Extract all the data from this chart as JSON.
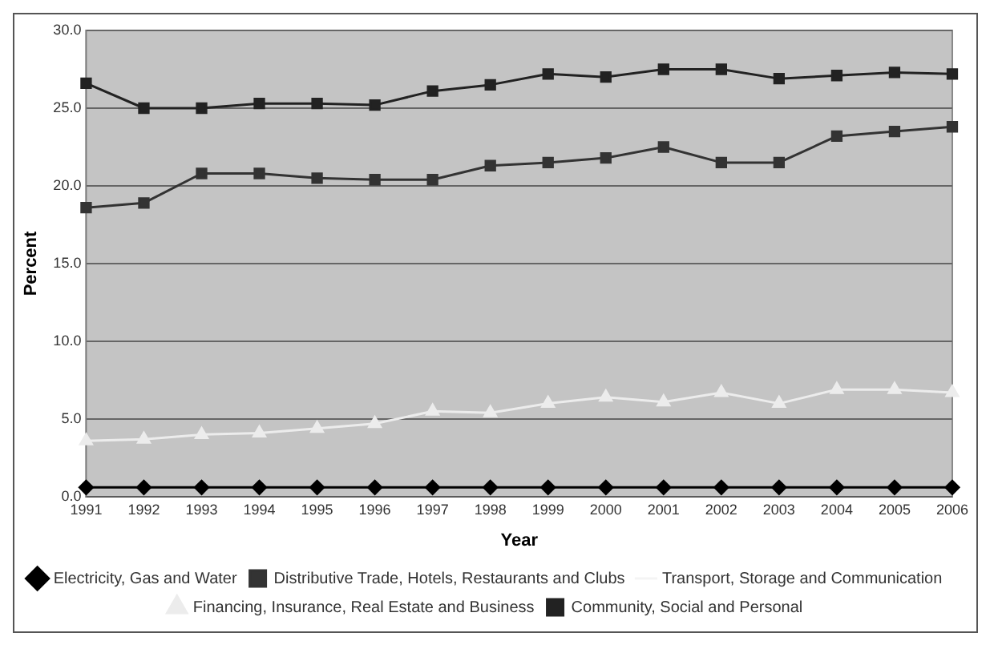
{
  "chart_data": {
    "type": "line",
    "xlabel": "Year",
    "ylabel": "Percent",
    "categories": [
      "1991",
      "1992",
      "1993",
      "1994",
      "1995",
      "1996",
      "1997",
      "1998",
      "1999",
      "2000",
      "2001",
      "2002",
      "2003",
      "2004",
      "2005",
      "2006"
    ],
    "series": [
      {
        "name": "Electricity, Gas and Water",
        "color": "#000000",
        "marker": "diamond",
        "values": [
          0.6,
          0.6,
          0.6,
          0.6,
          0.6,
          0.6,
          0.6,
          0.6,
          0.6,
          0.6,
          0.6,
          0.6,
          0.6,
          0.6,
          0.6,
          0.6
        ]
      },
      {
        "name": "Distributive Trade, Hotels, Restaurants and Clubs",
        "color": "#333333",
        "marker": "square",
        "values": [
          18.6,
          18.9,
          20.8,
          20.8,
          20.5,
          20.4,
          20.4,
          21.3,
          21.5,
          21.8,
          22.5,
          21.5,
          21.5,
          23.2,
          23.5,
          23.8
        ]
      },
      {
        "name": "Transport, Storage and Communication",
        "color": "#f4f4f4",
        "marker": "none",
        "values": [
          null,
          null,
          null,
          null,
          null,
          null,
          null,
          null,
          null,
          null,
          null,
          null,
          null,
          null,
          null,
          null
        ]
      },
      {
        "name": "Financing, Insurance, Real Estate and Business",
        "color": "#ececec",
        "marker": "triangle",
        "values": [
          3.6,
          3.7,
          4.0,
          4.1,
          4.4,
          4.7,
          5.5,
          5.4,
          6.0,
          6.4,
          6.1,
          6.7,
          6.0,
          6.9,
          6.9,
          6.7
        ]
      },
      {
        "name": "Community, Social and Personal",
        "color": "#222222",
        "marker": "square",
        "values": [
          26.6,
          25.0,
          25.0,
          25.3,
          25.3,
          25.2,
          26.1,
          26.5,
          27.2,
          27.0,
          27.5,
          27.5,
          26.9,
          27.1,
          27.3,
          27.2
        ]
      }
    ],
    "ylim": [
      0,
      30
    ],
    "yticks": [
      {
        "value": 0,
        "label": "0.0"
      },
      {
        "value": 5,
        "label": "5.0"
      },
      {
        "value": 10,
        "label": "10.0"
      },
      {
        "value": 15,
        "label": "15.0"
      },
      {
        "value": 20,
        "label": "20.0"
      },
      {
        "value": 25,
        "label": "25.0"
      },
      {
        "value": 30,
        "label": "30.0"
      }
    ],
    "grid": "y",
    "legend": "bottom",
    "line_style": "solid"
  }
}
